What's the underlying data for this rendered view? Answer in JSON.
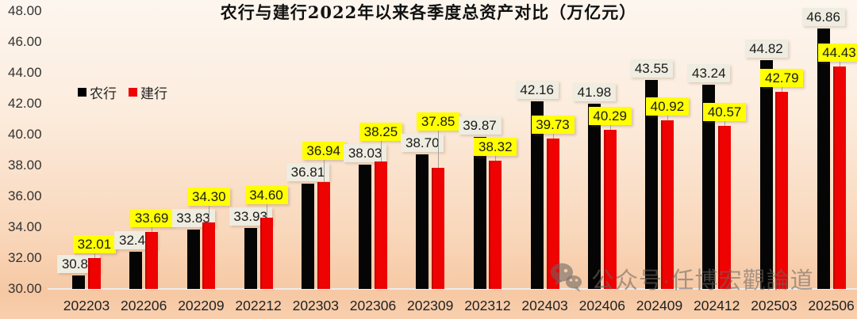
{
  "title": "农行与建行2022年以来各季度总资产对比（万亿元）",
  "legend": {
    "items": [
      {
        "label": "农行",
        "color": "#000000"
      },
      {
        "label": "建行",
        "color": "#ee0202"
      }
    ]
  },
  "watermark": {
    "icon": "wechat-icon",
    "text": "公众号·任博宏觀論道"
  },
  "colors": {
    "background_top": "#fdf6ef",
    "background_bottom": "#f6c8a3",
    "nonghang_bar": "#000000",
    "jianhang_bar": "#ee0202",
    "nonghang_label_bg": "#efece1",
    "jianhang_label_bg": "#ffff00",
    "axis_text": "#262626",
    "baseline": "#ececec"
  },
  "chart_data": {
    "type": "bar",
    "title": "农行与建行2022年以来各季度总资产对比（万亿元）",
    "categories": [
      "202203",
      "202206",
      "202209",
      "202212",
      "202303",
      "202306",
      "202309",
      "202312",
      "202403",
      "202406",
      "202409",
      "202412",
      "202503",
      "202506"
    ],
    "series": [
      {
        "name": "农行",
        "key": "nonghang",
        "color": "#000000",
        "label_bg": "#efece1",
        "values": [
          30.89,
          32.43,
          33.83,
          33.93,
          36.81,
          38.03,
          38.7,
          39.87,
          42.16,
          41.98,
          43.55,
          43.24,
          44.82,
          46.86
        ]
      },
      {
        "name": "建行",
        "key": "jianhang",
        "color": "#ee0202",
        "label_bg": "#ffff00",
        "values": [
          32.01,
          33.69,
          34.3,
          34.6,
          36.94,
          38.25,
          37.85,
          38.32,
          39.73,
          40.29,
          40.92,
          40.57,
          42.79,
          44.43
        ]
      }
    ],
    "xlabel": "",
    "ylabel": "",
    "ylim": [
      30,
      48
    ],
    "y_ticks": [
      "30.00",
      "32.00",
      "34.00",
      "36.00",
      "38.00",
      "40.00",
      "42.00",
      "44.00",
      "46.00",
      "48.00"
    ],
    "grid": false,
    "legend_position": "inside-upper-left",
    "value_label_format": "2-decimals"
  }
}
